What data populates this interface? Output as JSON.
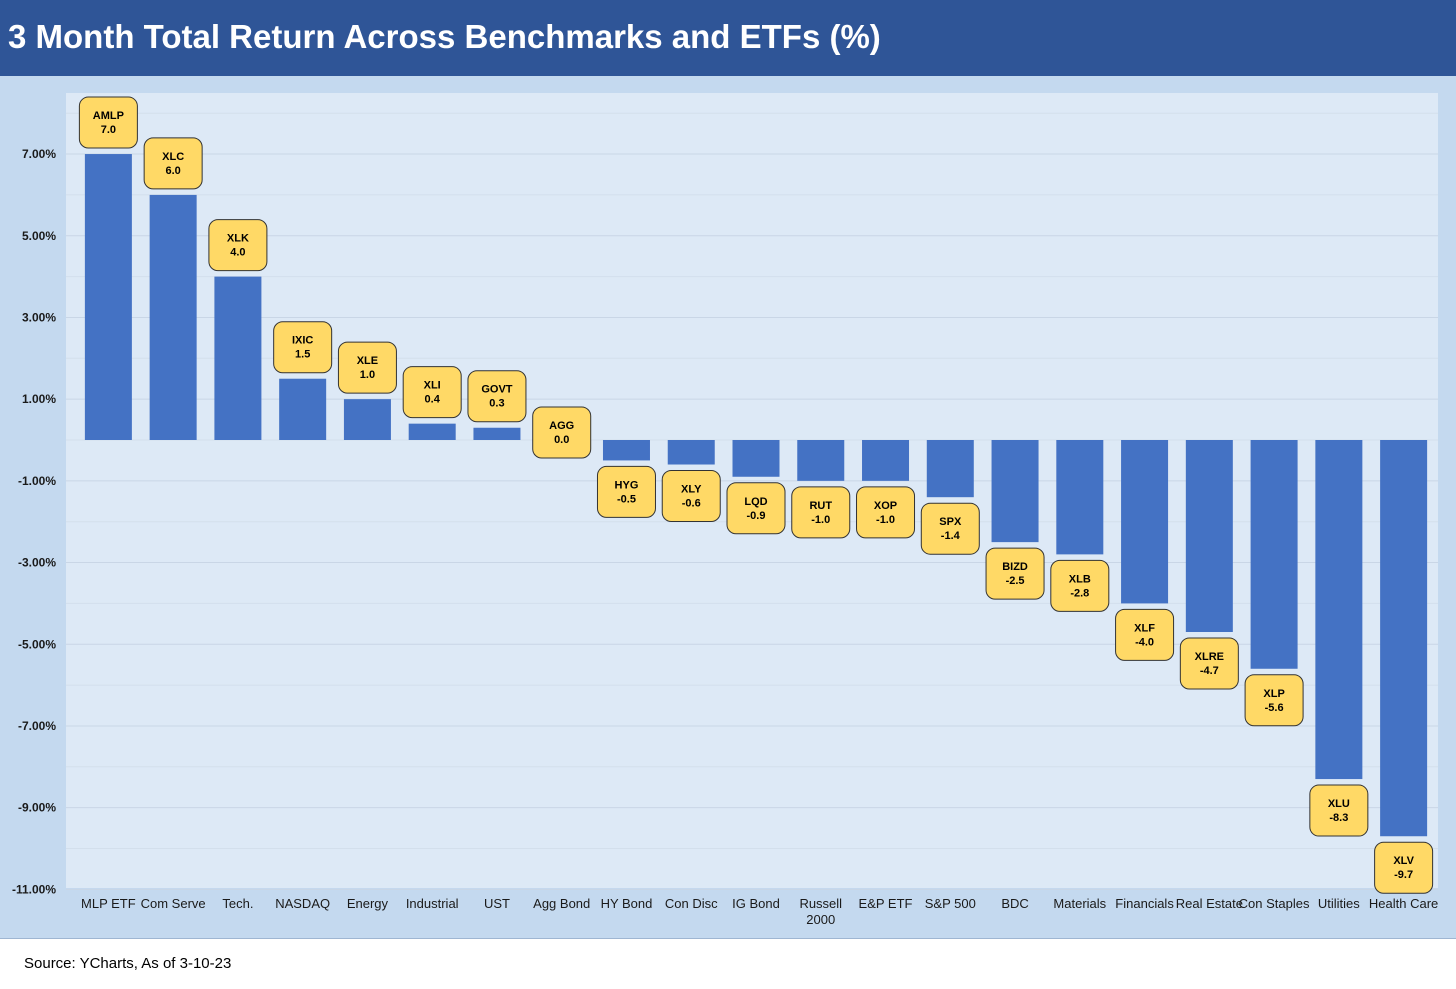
{
  "title": "3 Month Total Return Across Benchmarks and ETFs (%)",
  "source": "Source: YCharts, As of 3-10-23",
  "colors": {
    "header": "#2f5597",
    "bar": "#4472c4",
    "label_box_fill": "#ffd966",
    "plot_bg": "#dde9f6",
    "outer_bg": "#c4d9ef"
  },
  "chart_data": {
    "type": "bar",
    "title": "3 Month Total Return Across Benchmarks and ETFs (%)",
    "xlabel": "",
    "ylabel": "",
    "ylim": [
      -11,
      8.5
    ],
    "yticks": [
      7,
      5,
      3,
      1,
      -1,
      -3,
      -5,
      -7,
      -9,
      -11
    ],
    "ytick_labels": [
      "7.00%",
      "5.00%",
      "3.00%",
      "1.00%",
      "-1.00%",
      "-3.00%",
      "-5.00%",
      "-7.00%",
      "-9.00%",
      "-11.00%"
    ],
    "grid": true,
    "categories": [
      "MLP ETF",
      "Com Serve",
      "Tech.",
      "NASDAQ",
      "Energy",
      "Industrial",
      "UST",
      "Agg Bond",
      "HY Bond",
      "Con Disc",
      "IG Bond",
      "Russell 2000",
      "E&P ETF",
      "S&P 500",
      "BDC",
      "Materials",
      "Financials",
      "Real Estate",
      "Con Staples",
      "Utilities",
      "Health Care"
    ],
    "category_lines": [
      [
        "MLP ETF"
      ],
      [
        "Com Serve"
      ],
      [
        "Tech."
      ],
      [
        "NASDAQ"
      ],
      [
        "Energy"
      ],
      [
        "Industrial"
      ],
      [
        "UST"
      ],
      [
        "Agg Bond"
      ],
      [
        "HY Bond"
      ],
      [
        "Con Disc"
      ],
      [
        "IG Bond"
      ],
      [
        "Russell",
        "2000"
      ],
      [
        "E&P ETF"
      ],
      [
        "S&P 500"
      ],
      [
        "BDC"
      ],
      [
        "Materials"
      ],
      [
        "Financials"
      ],
      [
        "Real Estate"
      ],
      [
        "Con Staples"
      ],
      [
        "Utilities"
      ],
      [
        "Health Care"
      ]
    ],
    "tickers": [
      "AMLP",
      "XLC",
      "XLK",
      "IXIC",
      "XLE",
      "XLI",
      "GOVT",
      "AGG",
      "HYG",
      "XLY",
      "LQD",
      "RUT",
      "XOP",
      "SPX",
      "BIZD",
      "XLB",
      "XLF",
      "XLRE",
      "XLP",
      "XLU",
      "XLV"
    ],
    "value_labels": [
      "7.0",
      "6.0",
      "4.0",
      "1.5",
      "1.0",
      "0.4",
      "0.3",
      "0.0",
      "-0.5",
      "-0.6",
      "-0.9",
      "-1.0",
      "-1.0",
      "-1.4",
      "-2.5",
      "-2.8",
      "-4.0",
      "-4.7",
      "-5.6",
      "-8.3",
      "-9.7"
    ],
    "values": [
      7.0,
      6.0,
      4.0,
      1.5,
      1.0,
      0.4,
      0.3,
      0.0,
      -0.5,
      -0.6,
      -0.9,
      -1.0,
      -1.0,
      -1.4,
      -2.5,
      -2.8,
      -4.0,
      -4.7,
      -5.6,
      -8.3,
      -9.7
    ]
  }
}
